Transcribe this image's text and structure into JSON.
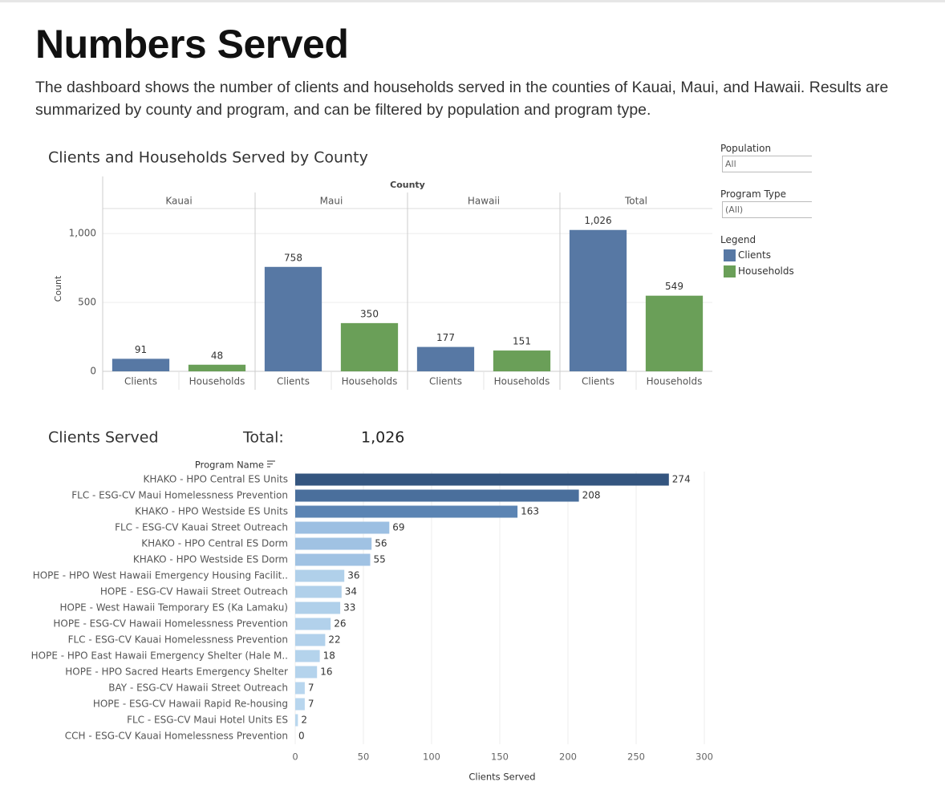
{
  "header": {
    "title": "Numbers Served",
    "description": "The dashboard shows the number of clients and households served in the counties of Kauai, Maui, and Hawaii. Results are summarized by county and program, and can be filtered by population and program type."
  },
  "filters": [
    {
      "label": "Population",
      "value": "All"
    },
    {
      "label": "Program Type",
      "value": "(All)"
    }
  ],
  "legend_title": "Legend",
  "chart_data": [
    {
      "type": "grouped-bar",
      "title": "Clients and Households Served by County",
      "group_label": "County",
      "groups": [
        "Kauai",
        "Maui",
        "Hawaii",
        "Total"
      ],
      "ylabel": "Count",
      "series": [
        {
          "name": "Clients",
          "color": "#5778a4",
          "values": [
            91,
            758,
            177,
            1026
          ],
          "value_labels": [
            "91",
            "758",
            "177",
            "1,026"
          ]
        },
        {
          "name": "Households",
          "color": "#6a9f58",
          "values": [
            48,
            350,
            151,
            549
          ]
        }
      ],
      "ylim": [
        0,
        1170
      ],
      "yticks": [
        0,
        500,
        {
          "value": 1000,
          "label": "1,000"
        }
      ],
      "grid": true
    },
    {
      "type": "hbar",
      "title": "Clients Served",
      "summary": {
        "label": "Total:",
        "value": "1,026"
      },
      "ylabel": "Program Name",
      "xlabel": "Clients Served",
      "categories": [
        "KHAKO - HPO Central ES Units",
        "FLC - ESG-CV Maui Homelessness Prevention",
        "KHAKO - HPO Westside ES Units",
        "FLC - ESG-CV Kauai Street Outreach",
        "KHAKO - HPO Central ES Dorm",
        "KHAKO - HPO Westside ES Dorm",
        "HOPE - HPO West Hawaii Emergency Housing Facilit..",
        "HOPE - ESG-CV Hawaii Street Outreach",
        "HOPE - West Hawaii Temporary ES (Ka Lamaku)",
        "HOPE - ESG-CV Hawaii Homelessness Prevention",
        "FLC - ESG-CV Kauai Homelessness Prevention",
        "HOPE - HPO East Hawaii Emergency Shelter (Hale M..",
        "HOPE - HPO Sacred Hearts Emergency Shelter",
        "BAY - ESG-CV Hawaii Street Outreach",
        "HOPE - ESG-CV Hawaii Rapid Re-housing",
        "FLC - ESG-CV Maui Hotel Units ES",
        "CCH - ESG-CV Kauai Homelessness Prevention"
      ],
      "values": [
        274,
        208,
        163,
        69,
        56,
        55,
        36,
        34,
        33,
        26,
        22,
        18,
        16,
        7,
        7,
        2,
        0
      ],
      "colors": [
        "#34557f",
        "#4a6f9c",
        "#5b84b3",
        "#9cbfe2",
        "#a0c2e3",
        "#a0c2e3",
        "#b0d0ea",
        "#b0d0ea",
        "#b0d0ea",
        "#b2d1eb",
        "#b2d1eb",
        "#b4d3ec",
        "#b4d3ec",
        "#b8d6ee",
        "#b8d6ee",
        "#bad7ee",
        "#bad7ee"
      ],
      "xlim": [
        0,
        300
      ],
      "xticks": [
        0,
        50,
        100,
        150,
        200,
        250,
        300
      ],
      "grid": true
    }
  ]
}
